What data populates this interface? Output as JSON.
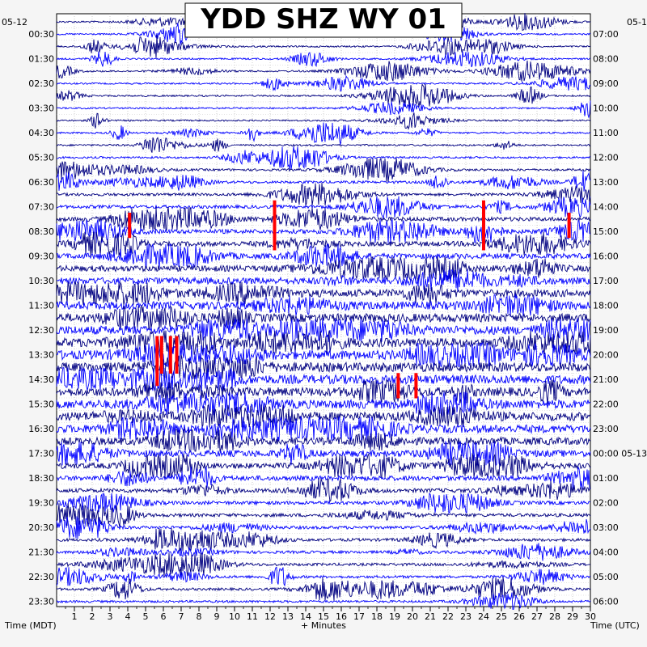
{
  "chart_data": {
    "type": "line",
    "title": "YDD SHZ WY 01",
    "xlabel": "+ Minutes",
    "ylabel_left": "Time (MDT)",
    "ylabel_right": "Time (UTC)",
    "date_left": "05-12",
    "date_right": "05-1",
    "date_right_midnight": "05-13",
    "x_ticks": [
      "1",
      "2",
      "3",
      "4",
      "5",
      "6",
      "7",
      "8",
      "9",
      "10",
      "11",
      "12",
      "13",
      "14",
      "15",
      "16",
      "17",
      "18",
      "19",
      "20",
      "21",
      "22",
      "23",
      "24",
      "25",
      "26",
      "27",
      "28",
      "29",
      "30"
    ],
    "xlim": [
      0,
      30
    ],
    "rows_left": [
      "00:30",
      "01:30",
      "02:30",
      "03:30",
      "04:30",
      "05:30",
      "06:30",
      "07:30",
      "08:30",
      "09:30",
      "10:30",
      "11:30",
      "12:30",
      "13:30",
      "14:30",
      "15:30",
      "16:30",
      "17:30",
      "18:30",
      "19:30",
      "20:30",
      "21:30",
      "22:30",
      "23:30"
    ],
    "rows_right": [
      "07:00",
      "08:00",
      "09:00",
      "10:00",
      "11:00",
      "12:00",
      "13:00",
      "14:00",
      "15:00",
      "16:00",
      "17:00",
      "18:00",
      "19:00",
      "20:00",
      "21:00",
      "22:00",
      "23:00",
      "00:00",
      "01:00",
      "02:00",
      "03:00",
      "04:00",
      "05:00",
      "06:00"
    ],
    "trace_count": 48,
    "trace_colors": [
      "#000080",
      "#0000ff"
    ],
    "clip_color": "#ff0000",
    "grid": true,
    "activity_by_trace": [
      0.6,
      0.5,
      0.5,
      0.5,
      0.55,
      0.5,
      0.55,
      0.5,
      0.5,
      0.55,
      0.6,
      0.8,
      1.0,
      1.2,
      1.4,
      1.8,
      2.4,
      2.6,
      3.0,
      3.4,
      3.8,
      4.4,
      5.0,
      5.4,
      5.8,
      6.0,
      6.2,
      6.4,
      6.4,
      6.2,
      6.0,
      6.0,
      5.8,
      5.4,
      5.0,
      4.4,
      3.6,
      3.0,
      2.4,
      2.0,
      1.8,
      1.6,
      1.5,
      1.4,
      1.4,
      1.3,
      1.2,
      1.0
    ],
    "clipped_events": [
      {
        "trace": 15,
        "minute": 12.25,
        "span_traces": 4
      },
      {
        "trace": 16,
        "minute": 4.1,
        "span_traces": 2
      },
      {
        "trace": 15,
        "minute": 24.0,
        "span_traces": 4
      },
      {
        "trace": 16,
        "minute": 28.8,
        "span_traces": 2
      },
      {
        "trace": 26,
        "minute": 5.65,
        "span_traces": 4
      },
      {
        "trace": 26,
        "minute": 5.9,
        "span_traces": 3
      },
      {
        "trace": 26,
        "minute": 6.4,
        "span_traces": 3
      },
      {
        "trace": 26,
        "minute": 6.75,
        "span_traces": 3
      },
      {
        "trace": 29,
        "minute": 19.2,
        "span_traces": 2
      },
      {
        "trace": 29,
        "minute": 20.2,
        "span_traces": 2
      }
    ]
  }
}
